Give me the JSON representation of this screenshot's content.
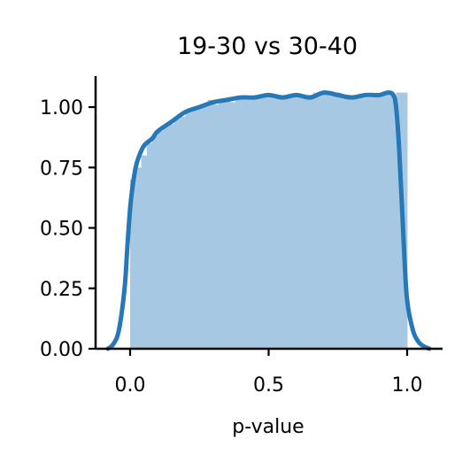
{
  "chart_data": {
    "type": "area",
    "title": "19-30 vs 30-40",
    "xlabel": "p-value",
    "ylabel": "",
    "xlim": [
      -0.12,
      1.13
    ],
    "ylim": [
      0,
      1.13
    ],
    "xticks": [
      0.0,
      0.5,
      1.0
    ],
    "xtick_labels": [
      "0.0",
      "0.5",
      "1.0"
    ],
    "yticks": [
      0.0,
      0.25,
      0.5,
      0.75,
      1.0
    ],
    "ytick_labels": [
      "0.00",
      "0.25",
      "0.50",
      "0.75",
      "1.00"
    ],
    "grid": false,
    "colors": {
      "hist": "#a6c8e2",
      "kde": "#2778b6"
    },
    "histogram": {
      "bins": [
        0.0,
        0.02,
        0.04,
        0.06,
        0.08,
        0.1,
        0.12,
        0.14,
        0.16,
        0.18,
        0.2,
        0.22,
        0.24,
        0.26,
        0.28,
        0.3,
        0.32,
        0.34,
        0.36,
        0.38,
        0.4,
        0.42,
        0.44,
        0.46,
        0.48,
        0.5,
        0.52,
        0.54,
        0.56,
        0.58,
        0.6,
        0.62,
        0.64,
        0.66,
        0.68,
        0.7,
        0.72,
        0.74,
        0.76,
        0.78,
        0.8,
        0.82,
        0.84,
        0.86,
        0.88,
        0.9,
        0.92,
        0.94,
        0.96,
        0.98,
        1.0
      ],
      "values": [
        0.7,
        0.75,
        0.8,
        0.85,
        0.88,
        0.9,
        0.92,
        0.93,
        0.95,
        0.96,
        0.98,
        0.99,
        1.0,
        1.01,
        1.03,
        1.01,
        1.02,
        1.03,
        1.02,
        1.03,
        1.04,
        1.03,
        1.04,
        1.05,
        1.04,
        1.05,
        1.04,
        1.05,
        1.04,
        1.05,
        1.04,
        1.05,
        1.05,
        1.06,
        1.05,
        1.06,
        1.05,
        1.06,
        1.05,
        1.05,
        1.04,
        1.05,
        1.04,
        1.04,
        1.05,
        1.05,
        1.06,
        1.05,
        1.06,
        1.06
      ]
    },
    "series": [
      {
        "x": [
          -0.08,
          -0.06,
          -0.04,
          -0.02,
          -0.01,
          0.0,
          0.01,
          0.02,
          0.03,
          0.05,
          0.08,
          0.1,
          0.15,
          0.2,
          0.25,
          0.3,
          0.35,
          0.4,
          0.45,
          0.5,
          0.55,
          0.6,
          0.65,
          0.7,
          0.75,
          0.8,
          0.85,
          0.9,
          0.93,
          0.95,
          0.96,
          0.97,
          0.98,
          0.99,
          1.0,
          1.02,
          1.04,
          1.06,
          1.08
        ],
        "y": [
          0.0,
          0.02,
          0.08,
          0.25,
          0.42,
          0.58,
          0.68,
          0.75,
          0.79,
          0.84,
          0.87,
          0.9,
          0.94,
          0.98,
          1.0,
          1.02,
          1.03,
          1.04,
          1.04,
          1.05,
          1.04,
          1.05,
          1.04,
          1.06,
          1.05,
          1.04,
          1.05,
          1.05,
          1.06,
          1.05,
          1.0,
          0.85,
          0.62,
          0.38,
          0.2,
          0.08,
          0.03,
          0.01,
          0.0
        ]
      }
    ]
  }
}
